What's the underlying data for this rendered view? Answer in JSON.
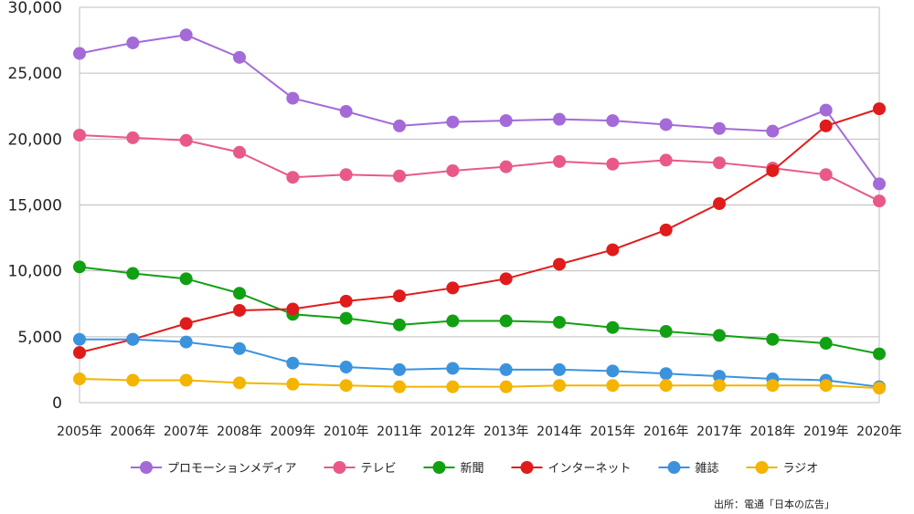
{
  "chart_data": {
    "type": "line",
    "title": "",
    "xlabel": "",
    "ylabel": "",
    "ylim": [
      0,
      30000
    ],
    "yticks": [
      0,
      5000,
      10000,
      15000,
      20000,
      25000,
      30000
    ],
    "ytick_labels": [
      "0",
      "5,000",
      "10,000",
      "15,000",
      "20,000",
      "25,000",
      "30,000"
    ],
    "grid": "horizontal",
    "legend_position": "bottom",
    "categories": [
      "2005年",
      "2006年",
      "2007年",
      "2008年",
      "2009年",
      "2010年",
      "2011年",
      "2012年",
      "2013年",
      "2014年",
      "2015年",
      "2016年",
      "2017年",
      "2018年",
      "2019年",
      "2020年"
    ],
    "series": [
      {
        "name": "プロモーションメディア",
        "color": "#a46ad8",
        "values": [
          26500,
          27300,
          27900,
          26200,
          23100,
          22100,
          21000,
          21300,
          21400,
          21500,
          21400,
          21100,
          20800,
          20600,
          22200,
          16600
        ]
      },
      {
        "name": "テレビ",
        "color": "#e8598a",
        "values": [
          20300,
          20100,
          19900,
          19000,
          17100,
          17300,
          17200,
          17600,
          17900,
          18300,
          18100,
          18400,
          18200,
          17800,
          17300,
          15300
        ]
      },
      {
        "name": "新聞",
        "color": "#11a011",
        "values": [
          10300,
          9800,
          9400,
          8300,
          6700,
          6400,
          5900,
          6200,
          6200,
          6100,
          5700,
          5400,
          5100,
          4800,
          4500,
          3700
        ]
      },
      {
        "name": "インターネット",
        "color": "#e01b1b",
        "values": [
          3800,
          4800,
          6000,
          7000,
          7100,
          7700,
          8100,
          8700,
          9400,
          10500,
          11600,
          13100,
          15100,
          17600,
          21000,
          22300
        ]
      },
      {
        "name": "雑誌",
        "color": "#3b93dd",
        "values": [
          4800,
          4800,
          4600,
          4100,
          3000,
          2700,
          2500,
          2600,
          2500,
          2500,
          2400,
          2200,
          2000,
          1800,
          1700,
          1200
        ]
      },
      {
        "name": "ラジオ",
        "color": "#f4b400",
        "values": [
          1800,
          1700,
          1700,
          1500,
          1400,
          1300,
          1200,
          1200,
          1200,
          1300,
          1300,
          1300,
          1300,
          1300,
          1300,
          1100
        ]
      }
    ],
    "source_note": "出所：電通「日本の広告」"
  }
}
